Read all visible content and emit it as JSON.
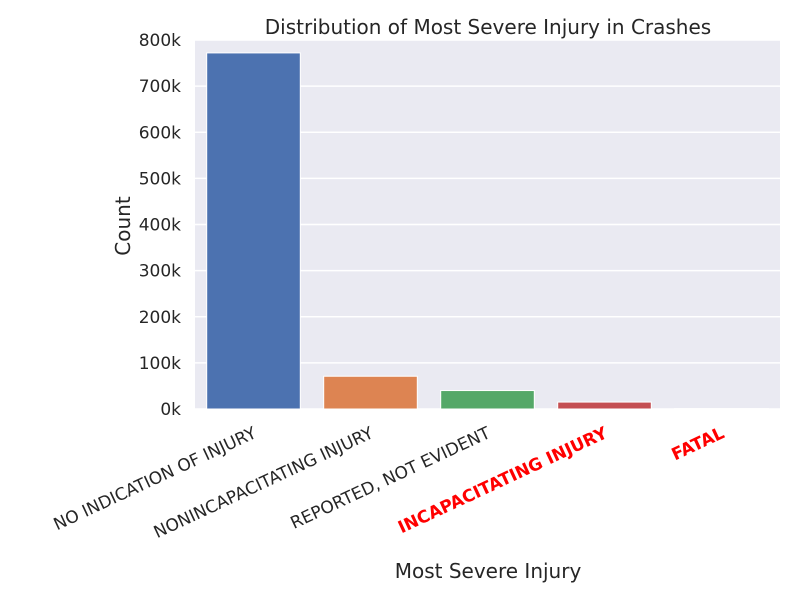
{
  "chart_data": {
    "type": "bar",
    "title": "Distribution of Most Severe Injury in Crashes",
    "xlabel": "Most Severe Injury",
    "ylabel": "Count",
    "categories": [
      "NO INDICATION OF INJURY",
      "NONINCAPACITATING INJURY",
      "REPORTED, NOT EVIDENT",
      "INCAPACITATING INJURY",
      "FATAL"
    ],
    "values": [
      772000,
      71000,
      40000,
      15000,
      900
    ],
    "ylim": [
      0,
      800000
    ],
    "yticks": [
      0,
      100000,
      200000,
      300000,
      400000,
      500000,
      600000,
      700000,
      800000
    ],
    "ytick_labels": [
      "0k",
      "100k",
      "200k",
      "300k",
      "400k",
      "500k",
      "600k",
      "700k",
      "800k"
    ],
    "grid": true,
    "colors": [
      "#4c72b0",
      "#dd8452",
      "#55a868",
      "#c44e52",
      "#8172b3"
    ],
    "highlight_categories": [
      "INCAPACITATING INJURY",
      "FATAL"
    ],
    "highlight_color": "#ff0000",
    "label_color": "#262626",
    "background_color": "#eaeaf2"
  }
}
